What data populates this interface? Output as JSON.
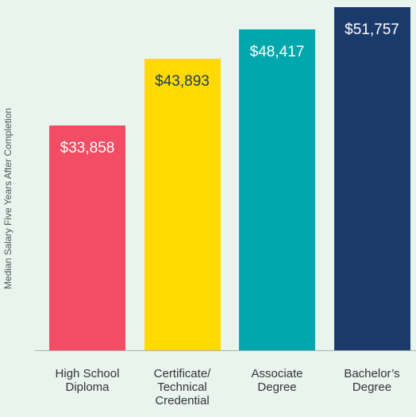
{
  "chart_data": {
    "type": "bar",
    "y_axis_label": "Median Salary Five Years After Completion",
    "categories": [
      "High School Diploma",
      "Certificate/ Technical Credential",
      "Associate Degree",
      "Bachelor’s Degree"
    ],
    "values": [
      33858,
      43893,
      48417,
      51757
    ],
    "value_labels": [
      "$33,858",
      "$43,893",
      "$48,417",
      "$51,757"
    ],
    "colors": [
      "#f24d64",
      "#ffda00",
      "#00a8ad",
      "#1b3a6c"
    ],
    "label_colors": [
      "#ffffff",
      "#1b3a6c",
      "#ffffff",
      "#ffffff"
    ],
    "ylim": [
      0,
      52800
    ]
  }
}
